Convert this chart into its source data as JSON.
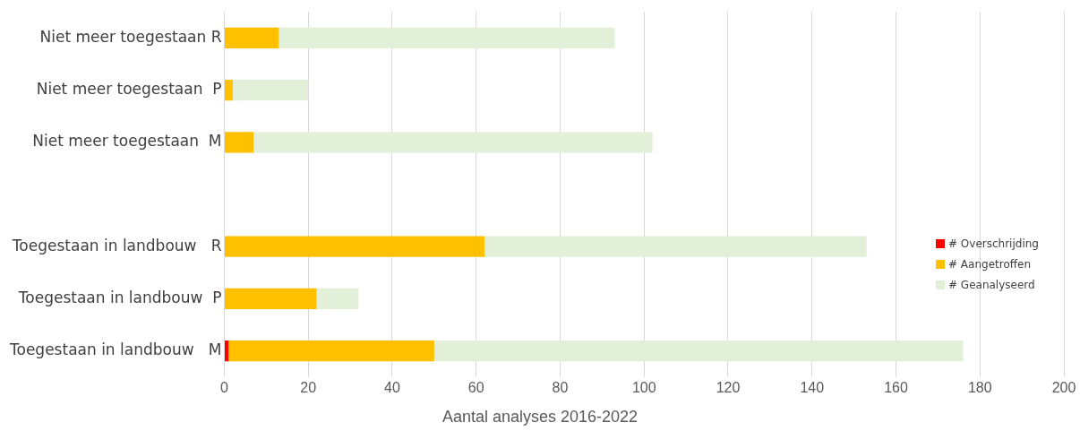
{
  "chart_data": {
    "type": "bar",
    "orientation": "horizontal",
    "stacked": true,
    "xlabel": "Aantal analyses 2016-2022",
    "categories": [
      "Niet meer toegestaan R",
      "Niet meer toegestaan  P",
      "Niet meer toegestaan  M",
      null,
      "Toegestaan in landbouw   R",
      "Toegestaan in landbouw  P",
      "Toegestaan in landbouw   M"
    ],
    "series": [
      {
        "name": "# Overschrijding",
        "color": "#ff0000",
        "values": [
          0,
          0,
          0,
          null,
          0,
          0,
          1
        ]
      },
      {
        "name": "# Aangetroffen",
        "color": "#ffc000",
        "values": [
          13,
          2,
          7,
          null,
          62,
          22,
          49
        ]
      },
      {
        "name": "# Geanalyseerd",
        "color": "#e2f0d9",
        "values": [
          80,
          18,
          95,
          null,
          91,
          10,
          126
        ]
      }
    ],
    "xlim": [
      0,
      200
    ],
    "xticks": [
      0,
      20,
      40,
      60,
      80,
      100,
      120,
      140,
      160,
      180,
      200
    ],
    "grid": "x",
    "legend": "right"
  }
}
